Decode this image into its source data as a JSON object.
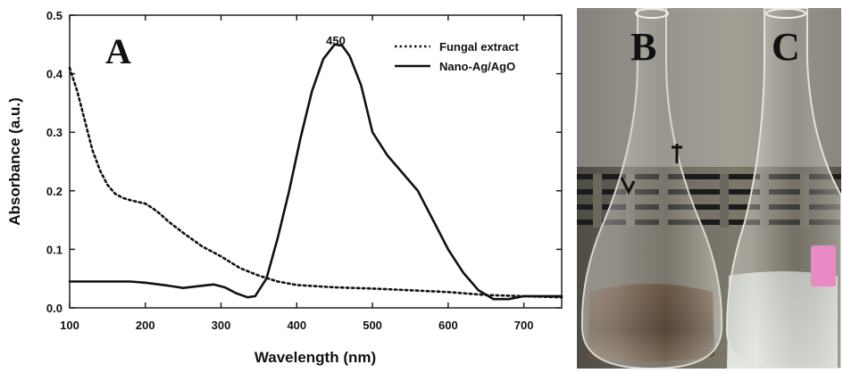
{
  "chart_data": {
    "type": "line",
    "panel_label": "A",
    "xlabel": "Wavelength (nm)",
    "ylabel": "Absorbance (a.u.)",
    "xlim": [
      100,
      750
    ],
    "ylim": [
      0.0,
      0.5
    ],
    "xticks": [
      100,
      200,
      300,
      400,
      500,
      600,
      700
    ],
    "yticks": [
      0.0,
      0.1,
      0.2,
      0.3,
      0.4,
      0.5
    ],
    "ytick_labels": [
      "0.0",
      "0.1",
      "0.2",
      "0.3",
      "0.4",
      "0.5"
    ],
    "grid": false,
    "legend_position": "top-right",
    "series": [
      {
        "name": "Fungal extract",
        "style": "dotted",
        "x": [
          100,
          110,
          120,
          130,
          140,
          150,
          160,
          170,
          180,
          190,
          200,
          210,
          220,
          230,
          250,
          275,
          300,
          325,
          350,
          375,
          400,
          425,
          450,
          500,
          550,
          600,
          650,
          700,
          750
        ],
        "y": [
          0.41,
          0.37,
          0.32,
          0.27,
          0.235,
          0.21,
          0.195,
          0.188,
          0.184,
          0.181,
          0.178,
          0.17,
          0.16,
          0.148,
          0.128,
          0.105,
          0.088,
          0.068,
          0.055,
          0.045,
          0.039,
          0.037,
          0.035,
          0.033,
          0.03,
          0.027,
          0.022,
          0.02,
          0.018
        ]
      },
      {
        "name": "Nano-Ag/AgO",
        "style": "solid",
        "x": [
          100,
          150,
          180,
          200,
          230,
          250,
          270,
          290,
          305,
          320,
          335,
          345,
          360,
          375,
          390,
          405,
          420,
          435,
          450,
          460,
          470,
          485,
          500,
          520,
          540,
          560,
          580,
          600,
          620,
          640,
          660,
          680,
          700,
          730,
          750
        ],
        "y": [
          0.045,
          0.045,
          0.045,
          0.043,
          0.038,
          0.034,
          0.037,
          0.04,
          0.035,
          0.025,
          0.018,
          0.02,
          0.05,
          0.12,
          0.2,
          0.29,
          0.37,
          0.425,
          0.45,
          0.448,
          0.43,
          0.38,
          0.3,
          0.26,
          0.23,
          0.2,
          0.15,
          0.1,
          0.06,
          0.03,
          0.015,
          0.015,
          0.02,
          0.02,
          0.02
        ]
      }
    ],
    "annotations": [
      {
        "text": "450",
        "x": 450,
        "y": 0.45
      }
    ]
  },
  "photo": {
    "labels": {
      "left_flask": "B",
      "right_flask": "C"
    }
  },
  "colors": {
    "line": "#111111",
    "photo_background": "#5d5a52",
    "brown_solution": "#4a3222",
    "clear_solution": "#d9e0dc",
    "pink_label": "#ea8ac4"
  }
}
